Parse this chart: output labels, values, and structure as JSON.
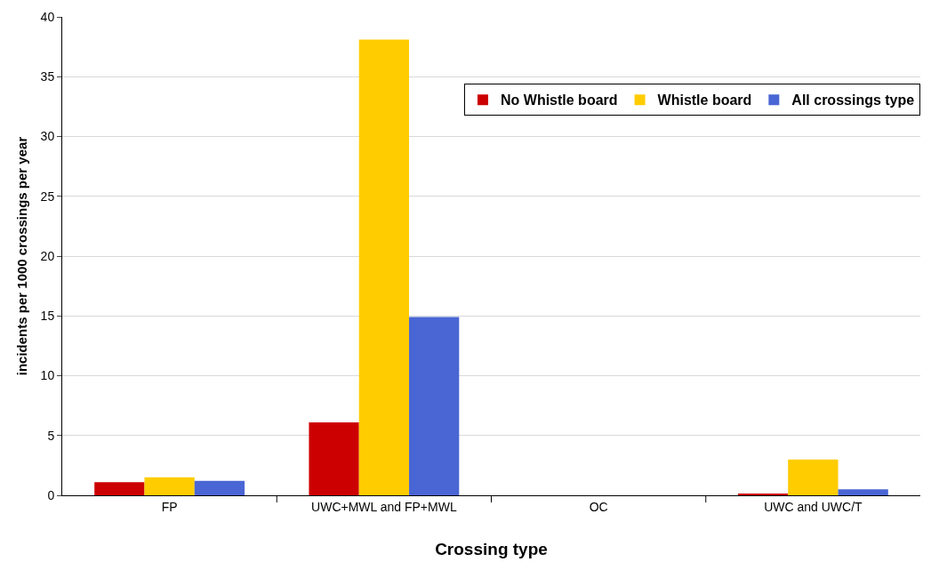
{
  "chart_data": {
    "type": "bar",
    "xlabel": "Crossing type",
    "ylabel": "incidents per 1000 crossings per year",
    "categories": [
      "FP",
      "UWC+MWL and FP+MWL",
      "OC",
      "UWC and UWC/T"
    ],
    "series": [
      {
        "name": "No Whistle board",
        "color": "#cc0000",
        "values": [
          1.1,
          6.1,
          0,
          0.15
        ]
      },
      {
        "name": "Whistle board",
        "color": "#ffcc00",
        "values": [
          1.5,
          38.1,
          0,
          3.0
        ]
      },
      {
        "name": "All crossings type",
        "color": "#4a66d4",
        "values": [
          1.2,
          14.9,
          0,
          0.5
        ]
      }
    ],
    "ylim": [
      0,
      40
    ],
    "yticks": [
      0,
      5,
      10,
      15,
      20,
      25,
      30,
      35,
      40
    ],
    "grid": "y",
    "legend": "top right"
  }
}
